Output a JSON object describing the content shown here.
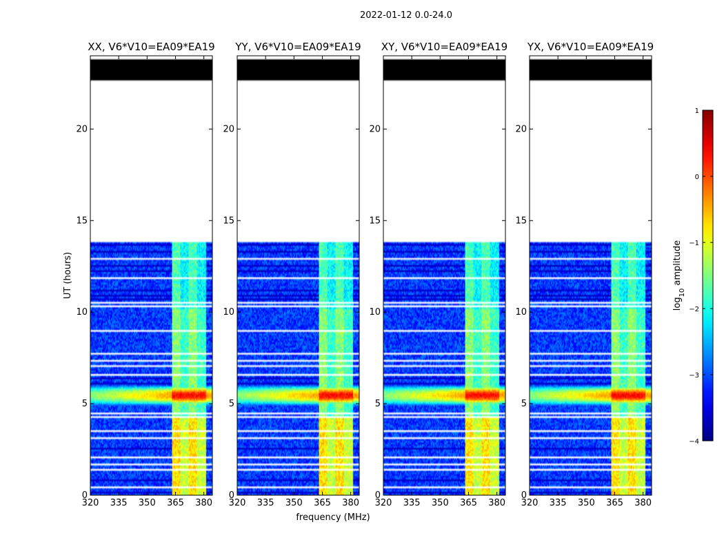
{
  "chart_data": {
    "type": "heatmap",
    "title": "2022-01-12 0.0-24.0",
    "xlabel": "frequency (MHz)",
    "ylabel": "UT (hours)",
    "xlim": [
      320,
      384.5
    ],
    "ylim": [
      0,
      24
    ],
    "xticks": [
      320,
      335,
      350,
      365,
      380
    ],
    "yticks": [
      0,
      5,
      10,
      15,
      20
    ],
    "colorbar": {
      "label": "log10 amplitude",
      "label_parts": [
        "log",
        "10",
        " amplitude"
      ],
      "ticks": [
        1,
        0,
        -1,
        -2,
        -3,
        -4
      ],
      "tick_labels": [
        "1",
        "0",
        "−1",
        "−2",
        "−3",
        "−4"
      ],
      "range": [
        -4,
        1
      ],
      "colormap": "jet"
    },
    "panels": [
      {
        "title": "XX, V6*V10=EA09*EA19",
        "polarization": "XX",
        "seed": 11
      },
      {
        "title": "YY, V6*V10=EA09*EA19",
        "polarization": "YY",
        "seed": 23
      },
      {
        "title": "XY, V6*V10=EA09*EA19",
        "polarization": "XY",
        "seed": 37
      },
      {
        "title": "YX, V6*V10=EA09*EA19",
        "polarization": "YX",
        "seed": 53
      }
    ],
    "flagged_blocks_hours": [
      [
        22.7,
        23.8
      ]
    ],
    "no_data_range_hours": [
      13.8,
      22.7
    ],
    "background_level": -3.1,
    "rfi_band_mhz": [
      363,
      381
    ],
    "rfi_band_level": -1.7,
    "rfi_band_level_morning": -1.0,
    "bright_event": {
      "ut_range": [
        4.9,
        6.0
      ],
      "peak_ut": 5.45,
      "level_band": 0.35,
      "level_low": -0.4
    },
    "white_gap_hours": [
      0.4,
      1.4,
      1.65,
      2.1,
      3.15,
      3.5,
      4.25,
      4.5,
      6.55,
      7.1,
      7.35,
      7.75,
      9.0,
      10.3,
      10.55,
      11.9,
      12.9
    ],
    "dark_line_hours": [
      0.15,
      0.85,
      2.55,
      5.15,
      5.3,
      6.1,
      6.4,
      10.7,
      10.9,
      11.2,
      12.2,
      12.55,
      13.3,
      13.65
    ]
  }
}
